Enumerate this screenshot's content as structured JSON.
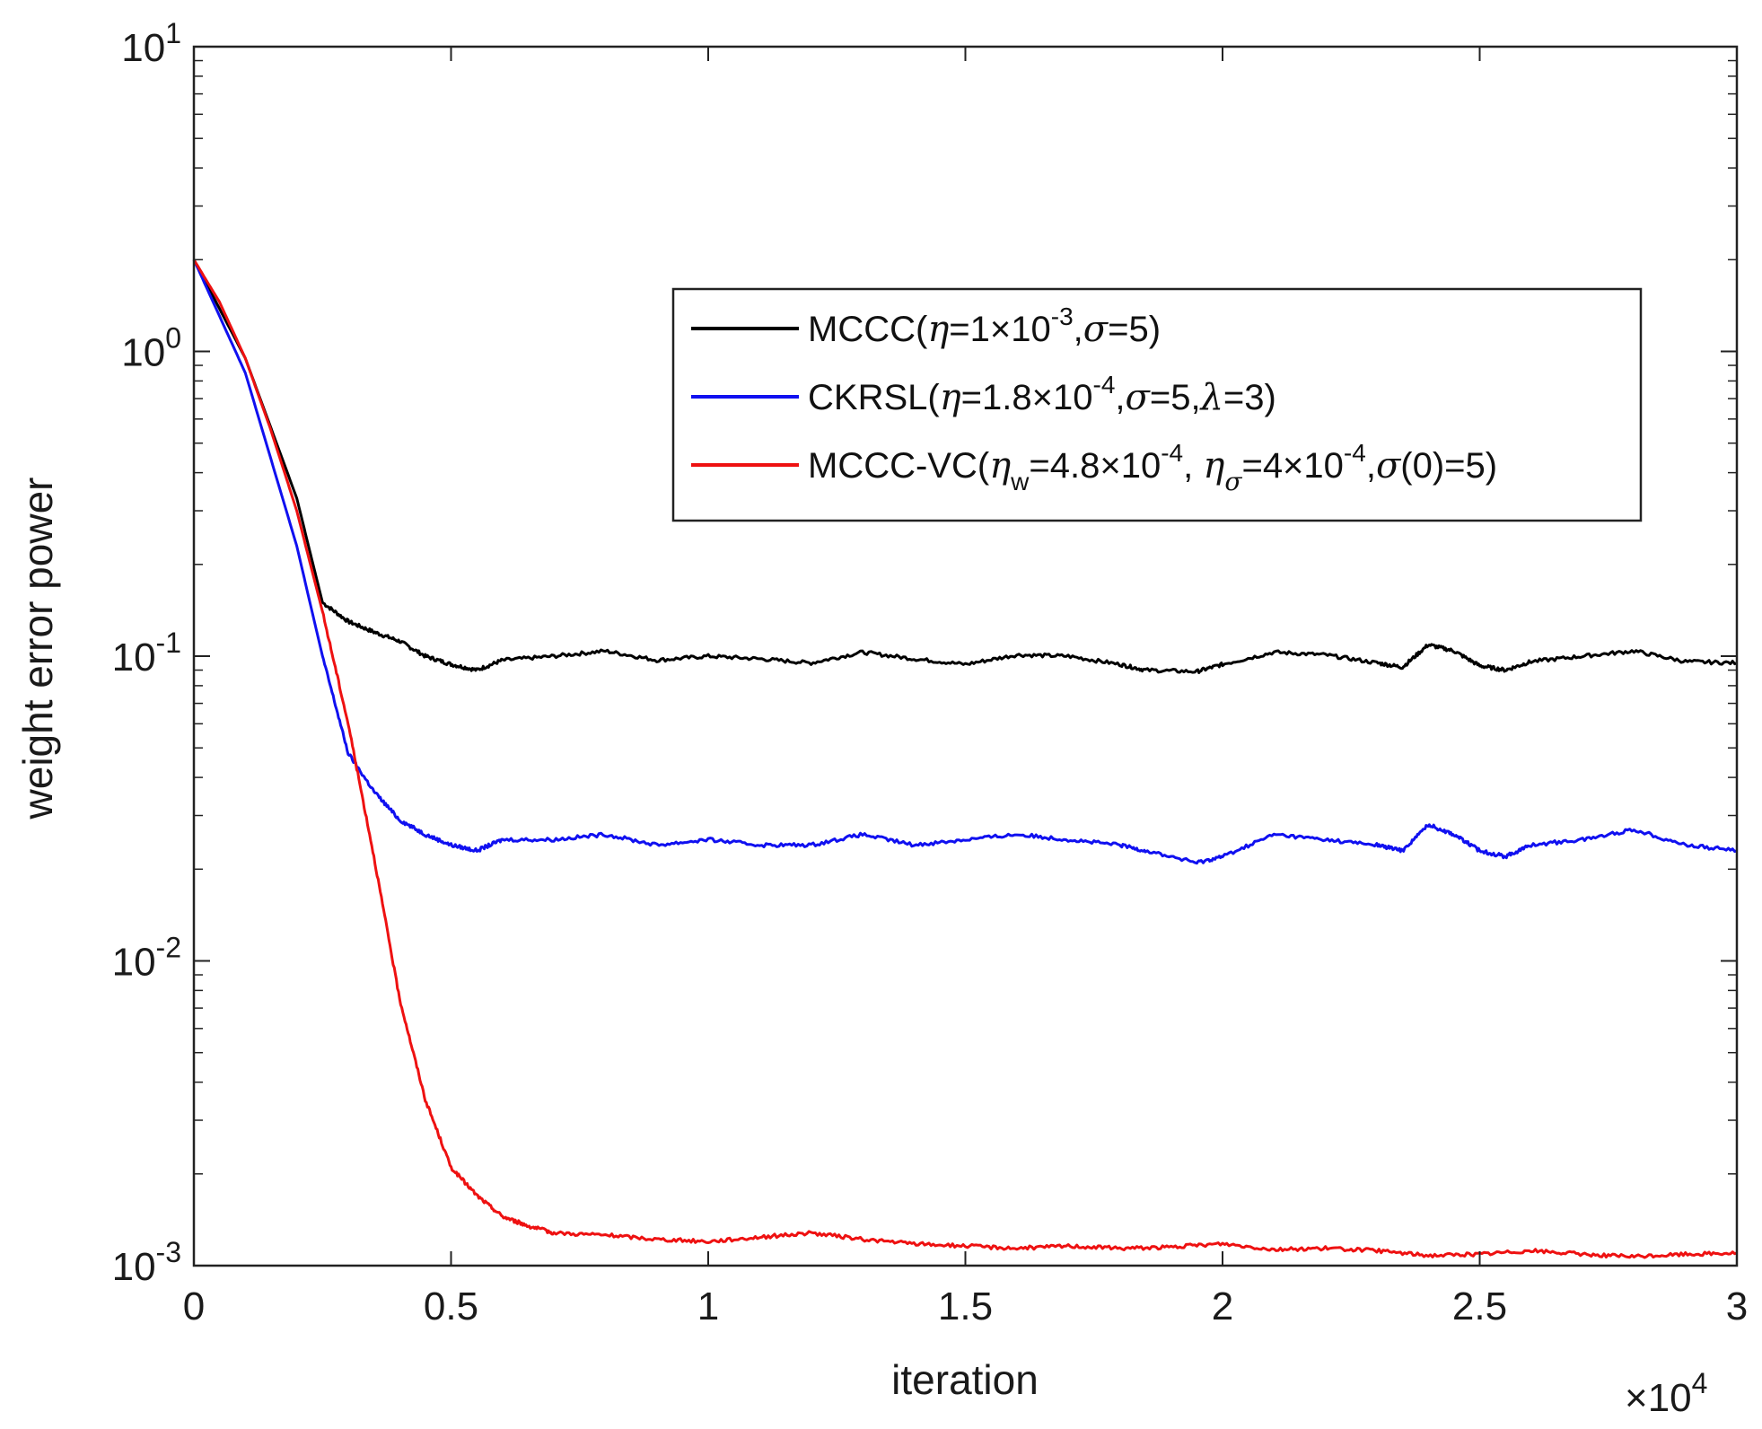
{
  "chart_data": {
    "type": "line",
    "title": "",
    "xlabel": "iteration",
    "ylabel": "weight error power",
    "x_multiplier_base": "×10",
    "x_multiplier_exp": "4",
    "x_range": [
      0,
      3
    ],
    "y_scale": "log",
    "y_range": [
      0.001,
      10
    ],
    "grid": false,
    "legend_position": "top-right",
    "x_ticks": [
      "0",
      "0.5",
      "1",
      "1.5",
      "2",
      "2.5",
      "3"
    ],
    "y_ticks": [
      {
        "base": "10",
        "exp": "-3"
      },
      {
        "base": "10",
        "exp": "-2"
      },
      {
        "base": "10",
        "exp": "-1"
      },
      {
        "base": "10",
        "exp": "0"
      },
      {
        "base": "10",
        "exp": "1"
      }
    ],
    "series": [
      {
        "name": "MCCC(η=1×10-3,σ=5)",
        "legend_parts": [
          {
            "t": "MCCC("
          },
          {
            "t": "η",
            "sym": true
          },
          {
            "t": "=1×10"
          },
          {
            "t": "-3",
            "sup": true
          },
          {
            "t": ","
          },
          {
            "t": "σ",
            "sym": true
          },
          {
            "t": "=5)"
          }
        ],
        "color": "#000000",
        "points": [
          [
            0,
            2.0
          ],
          [
            0.1,
            0.95
          ],
          [
            0.2,
            0.33
          ],
          [
            0.25,
            0.15
          ],
          [
            0.3,
            0.13
          ],
          [
            0.35,
            0.12
          ],
          [
            0.4,
            0.112
          ],
          [
            0.45,
            0.1
          ],
          [
            0.5,
            0.094
          ],
          [
            0.55,
            0.09
          ],
          [
            0.6,
            0.097
          ],
          [
            0.7,
            0.1
          ],
          [
            0.8,
            0.104
          ],
          [
            0.9,
            0.097
          ],
          [
            1.0,
            0.1
          ],
          [
            1.1,
            0.098
          ],
          [
            1.2,
            0.095
          ],
          [
            1.3,
            0.103
          ],
          [
            1.4,
            0.098
          ],
          [
            1.5,
            0.094
          ],
          [
            1.6,
            0.101
          ],
          [
            1.7,
            0.1
          ],
          [
            1.8,
            0.094
          ],
          [
            1.85,
            0.09
          ],
          [
            1.95,
            0.089
          ],
          [
            2.0,
            0.094
          ],
          [
            2.1,
            0.103
          ],
          [
            2.2,
            0.101
          ],
          [
            2.3,
            0.095
          ],
          [
            2.35,
            0.092
          ],
          [
            2.4,
            0.109
          ],
          [
            2.45,
            0.104
          ],
          [
            2.5,
            0.093
          ],
          [
            2.55,
            0.09
          ],
          [
            2.6,
            0.096
          ],
          [
            2.7,
            0.1
          ],
          [
            2.8,
            0.104
          ],
          [
            2.9,
            0.096
          ],
          [
            3.0,
            0.095
          ]
        ]
      },
      {
        "name": "CKRSL(η=1.8×10-4,σ=5,λ=3)",
        "legend_parts": [
          {
            "t": "CKRSL("
          },
          {
            "t": "η",
            "sym": true
          },
          {
            "t": "=1.8×10"
          },
          {
            "t": "-4",
            "sup": true
          },
          {
            "t": ","
          },
          {
            "t": "σ",
            "sym": true
          },
          {
            "t": "=5,"
          },
          {
            "t": "λ",
            "sym": true
          },
          {
            "t": "=3)"
          }
        ],
        "color": "#1010f0",
        "points": [
          [
            0,
            2.0
          ],
          [
            0.1,
            0.85
          ],
          [
            0.2,
            0.23
          ],
          [
            0.25,
            0.1
          ],
          [
            0.3,
            0.048
          ],
          [
            0.35,
            0.036
          ],
          [
            0.4,
            0.029
          ],
          [
            0.45,
            0.026
          ],
          [
            0.5,
            0.024
          ],
          [
            0.55,
            0.023
          ],
          [
            0.6,
            0.025
          ],
          [
            0.7,
            0.025
          ],
          [
            0.8,
            0.026
          ],
          [
            0.9,
            0.024
          ],
          [
            1.0,
            0.025
          ],
          [
            1.1,
            0.024
          ],
          [
            1.2,
            0.024
          ],
          [
            1.3,
            0.026
          ],
          [
            1.4,
            0.024
          ],
          [
            1.5,
            0.025
          ],
          [
            1.6,
            0.026
          ],
          [
            1.7,
            0.025
          ],
          [
            1.8,
            0.024
          ],
          [
            1.85,
            0.023
          ],
          [
            1.95,
            0.021
          ],
          [
            2.0,
            0.022
          ],
          [
            2.1,
            0.026
          ],
          [
            2.2,
            0.025
          ],
          [
            2.3,
            0.024
          ],
          [
            2.35,
            0.023
          ],
          [
            2.4,
            0.028
          ],
          [
            2.45,
            0.026
          ],
          [
            2.5,
            0.023
          ],
          [
            2.55,
            0.022
          ],
          [
            2.6,
            0.024
          ],
          [
            2.7,
            0.025
          ],
          [
            2.8,
            0.027
          ],
          [
            2.9,
            0.024
          ],
          [
            3.0,
            0.023
          ]
        ]
      },
      {
        "name": "MCCC-VC(ηw=4.8×10-4, ησ=4×10-4,σ(0)=5)",
        "legend_parts": [
          {
            "t": "MCCC-VC("
          },
          {
            "t": "η",
            "sym": true
          },
          {
            "t": "w",
            "sub": true
          },
          {
            "t": "=4.8×10"
          },
          {
            "t": "-4",
            "sup": true
          },
          {
            "t": ",  "
          },
          {
            "t": "η",
            "sym": true
          },
          {
            "t": "σ",
            "sub": true,
            "sym": true
          },
          {
            "t": "=4×10"
          },
          {
            "t": "-4",
            "sup": true
          },
          {
            "t": ","
          },
          {
            "t": "σ",
            "sym": true
          },
          {
            "t": "(0)=5)"
          }
        ],
        "color": "#ee1111",
        "points": [
          [
            0,
            2.0
          ],
          [
            0.05,
            1.45
          ],
          [
            0.1,
            0.95
          ],
          [
            0.15,
            0.55
          ],
          [
            0.2,
            0.3
          ],
          [
            0.25,
            0.14
          ],
          [
            0.3,
            0.06
          ],
          [
            0.35,
            0.022
          ],
          [
            0.4,
            0.0075
          ],
          [
            0.45,
            0.0035
          ],
          [
            0.5,
            0.0021
          ],
          [
            0.55,
            0.0017
          ],
          [
            0.6,
            0.00145
          ],
          [
            0.65,
            0.00135
          ],
          [
            0.7,
            0.00128
          ],
          [
            0.8,
            0.00126
          ],
          [
            0.9,
            0.00122
          ],
          [
            1.0,
            0.0012
          ],
          [
            1.1,
            0.00124
          ],
          [
            1.2,
            0.00128
          ],
          [
            1.3,
            0.00122
          ],
          [
            1.4,
            0.00118
          ],
          [
            1.5,
            0.00116
          ],
          [
            1.6,
            0.00114
          ],
          [
            1.7,
            0.00116
          ],
          [
            1.8,
            0.00114
          ],
          [
            1.9,
            0.00115
          ],
          [
            2.0,
            0.00118
          ],
          [
            2.1,
            0.00113
          ],
          [
            2.2,
            0.00114
          ],
          [
            2.3,
            0.00112
          ],
          [
            2.4,
            0.00108
          ],
          [
            2.5,
            0.00109
          ],
          [
            2.6,
            0.00112
          ],
          [
            2.7,
            0.00109
          ],
          [
            2.8,
            0.00107
          ],
          [
            2.9,
            0.00109
          ],
          [
            3.0,
            0.0011
          ]
        ]
      }
    ]
  }
}
